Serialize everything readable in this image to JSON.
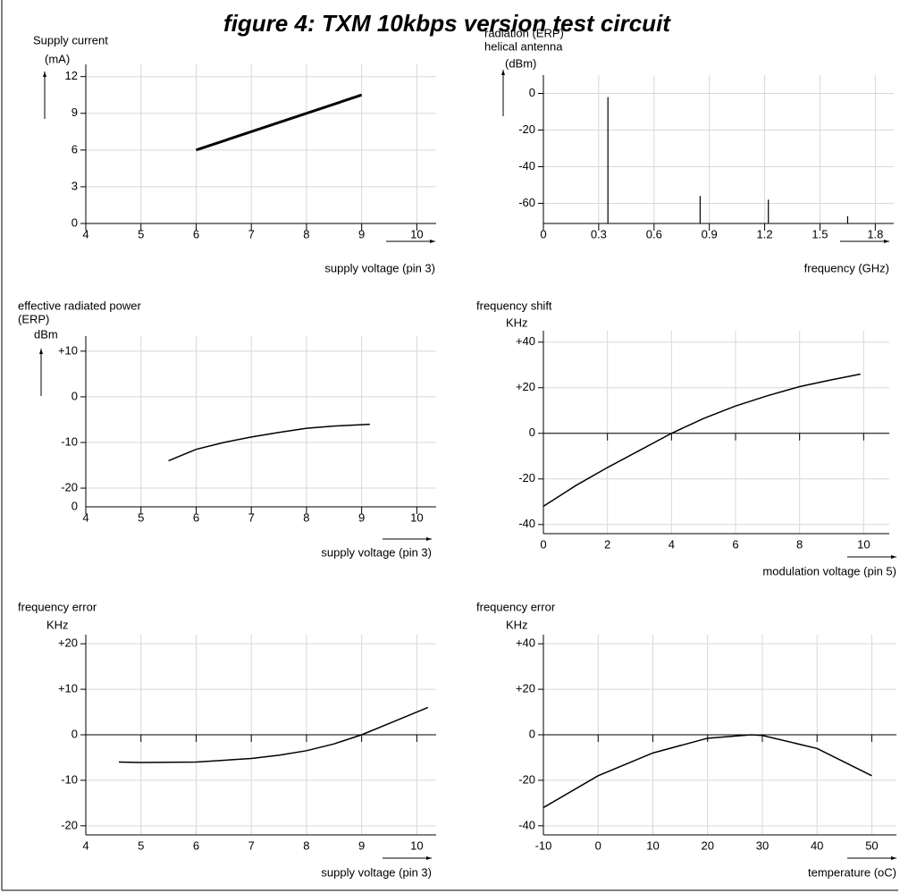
{
  "title": "figure 4: TXM 10kbps version test circuit",
  "chart_data": [
    {
      "type": "line",
      "ylabel": [
        "Supply current",
        "(mA)"
      ],
      "xlabel": "supply voltage (pin 3)",
      "x": [
        6,
        9
      ],
      "values": [
        6,
        10.5
      ],
      "color": "#000000",
      "xlim": [
        4,
        10.35
      ],
      "xticks": [
        4,
        5,
        6,
        7,
        8,
        9,
        10
      ],
      "ylim": [
        0,
        13
      ],
      "yticks": [
        0,
        3,
        6,
        9,
        12
      ],
      "grid": true,
      "zero_line": false
    },
    {
      "type": "stem",
      "ylabel": [
        "radiation (ERP)",
        "helical antenna",
        "(dBm)"
      ],
      "xlabel": "frequency (GHz)",
      "x": [
        0.35,
        0.85,
        1.22,
        1.65
      ],
      "values": [
        -2,
        -56,
        -58,
        -67
      ],
      "color": "#000000",
      "xlim": [
        0,
        1.9
      ],
      "xticks": [
        0,
        0.3,
        0.6,
        0.9,
        1.2,
        1.5,
        1.8
      ],
      "ylim": [
        -71,
        10
      ],
      "yticks": [
        -60,
        -40,
        -20,
        0
      ],
      "grid": true,
      "zero_line": false
    },
    {
      "type": "line",
      "ylabel": [
        "effective radiated power",
        "(ERP)",
        "dBm"
      ],
      "xlabel": "supply voltage (pin 3)",
      "x": [
        5.5,
        6,
        6.5,
        7,
        7.5,
        8,
        8.5,
        9,
        9.15
      ],
      "values": [
        -14,
        -11.5,
        -10,
        -8.8,
        -7.8,
        -6.9,
        -6.4,
        -6.1,
        -6
      ],
      "color": "#000000",
      "xlim": [
        4,
        10.35
      ],
      "xticks": [
        4,
        5,
        6,
        7,
        8,
        9,
        10
      ],
      "ylim": [
        -24.1,
        13.3
      ],
      "yticks": [
        -20,
        -10,
        0,
        {
          "value": 10,
          "label": "+10"
        }
      ],
      "axis_break_label": "0",
      "grid": true,
      "zero_line": false
    },
    {
      "type": "line",
      "ylabel": [
        "frequency shift",
        "KHz"
      ],
      "xlabel": "modulation voltage (pin 5)",
      "x": [
        0,
        1,
        2,
        3,
        4,
        5,
        6,
        7,
        8,
        9,
        9.9
      ],
      "values": [
        -32,
        -23,
        -15,
        -7.5,
        0,
        6.5,
        12,
        16.5,
        20.5,
        23.5,
        26
      ],
      "color": "#000000",
      "xlim": [
        0,
        10.8
      ],
      "xticks": [
        0,
        2,
        4,
        6,
        8,
        10
      ],
      "ylim": [
        -44,
        45
      ],
      "yticks": [
        -40,
        -20,
        0,
        {
          "value": 20,
          "label": "+20"
        },
        {
          "value": 40,
          "label": "+40"
        }
      ],
      "grid": true,
      "zero_line": true
    },
    {
      "type": "line",
      "ylabel": [
        "frequency error",
        "KHz"
      ],
      "xlabel": "supply voltage (pin 3)",
      "x": [
        4.6,
        5,
        6,
        7,
        7.5,
        8,
        8.5,
        9,
        9.5,
        10,
        10.2
      ],
      "values": [
        -6,
        -6.1,
        -6,
        -5.2,
        -4.5,
        -3.5,
        -2,
        0,
        2.5,
        5,
        6
      ],
      "color": "#000000",
      "xlim": [
        4,
        10.35
      ],
      "xticks": [
        4,
        5,
        6,
        7,
        8,
        9,
        10
      ],
      "ylim": [
        -22,
        22
      ],
      "yticks": [
        -20,
        -10,
        0,
        {
          "value": 10,
          "label": "+10"
        },
        {
          "value": 20,
          "label": "+20"
        }
      ],
      "grid": true,
      "zero_line": true
    },
    {
      "type": "line",
      "ylabel": [
        "frequency error",
        "KHz"
      ],
      "xlabel": "temperature (oC)",
      "x": [
        -10,
        0,
        10,
        20,
        28,
        30,
        40,
        50
      ],
      "values": [
        -32,
        -18,
        -8,
        -1.5,
        0,
        -0.3,
        -6,
        -18
      ],
      "color": "#000000",
      "xlim": [
        -10,
        54.5
      ],
      "xticks": [
        -10,
        0,
        10,
        20,
        30,
        40,
        50
      ],
      "ylim": [
        -44,
        44
      ],
      "yticks": [
        -40,
        -20,
        0,
        {
          "value": 20,
          "label": "+20"
        },
        {
          "value": 40,
          "label": "+40"
        }
      ],
      "grid": true,
      "zero_line": true
    }
  ]
}
